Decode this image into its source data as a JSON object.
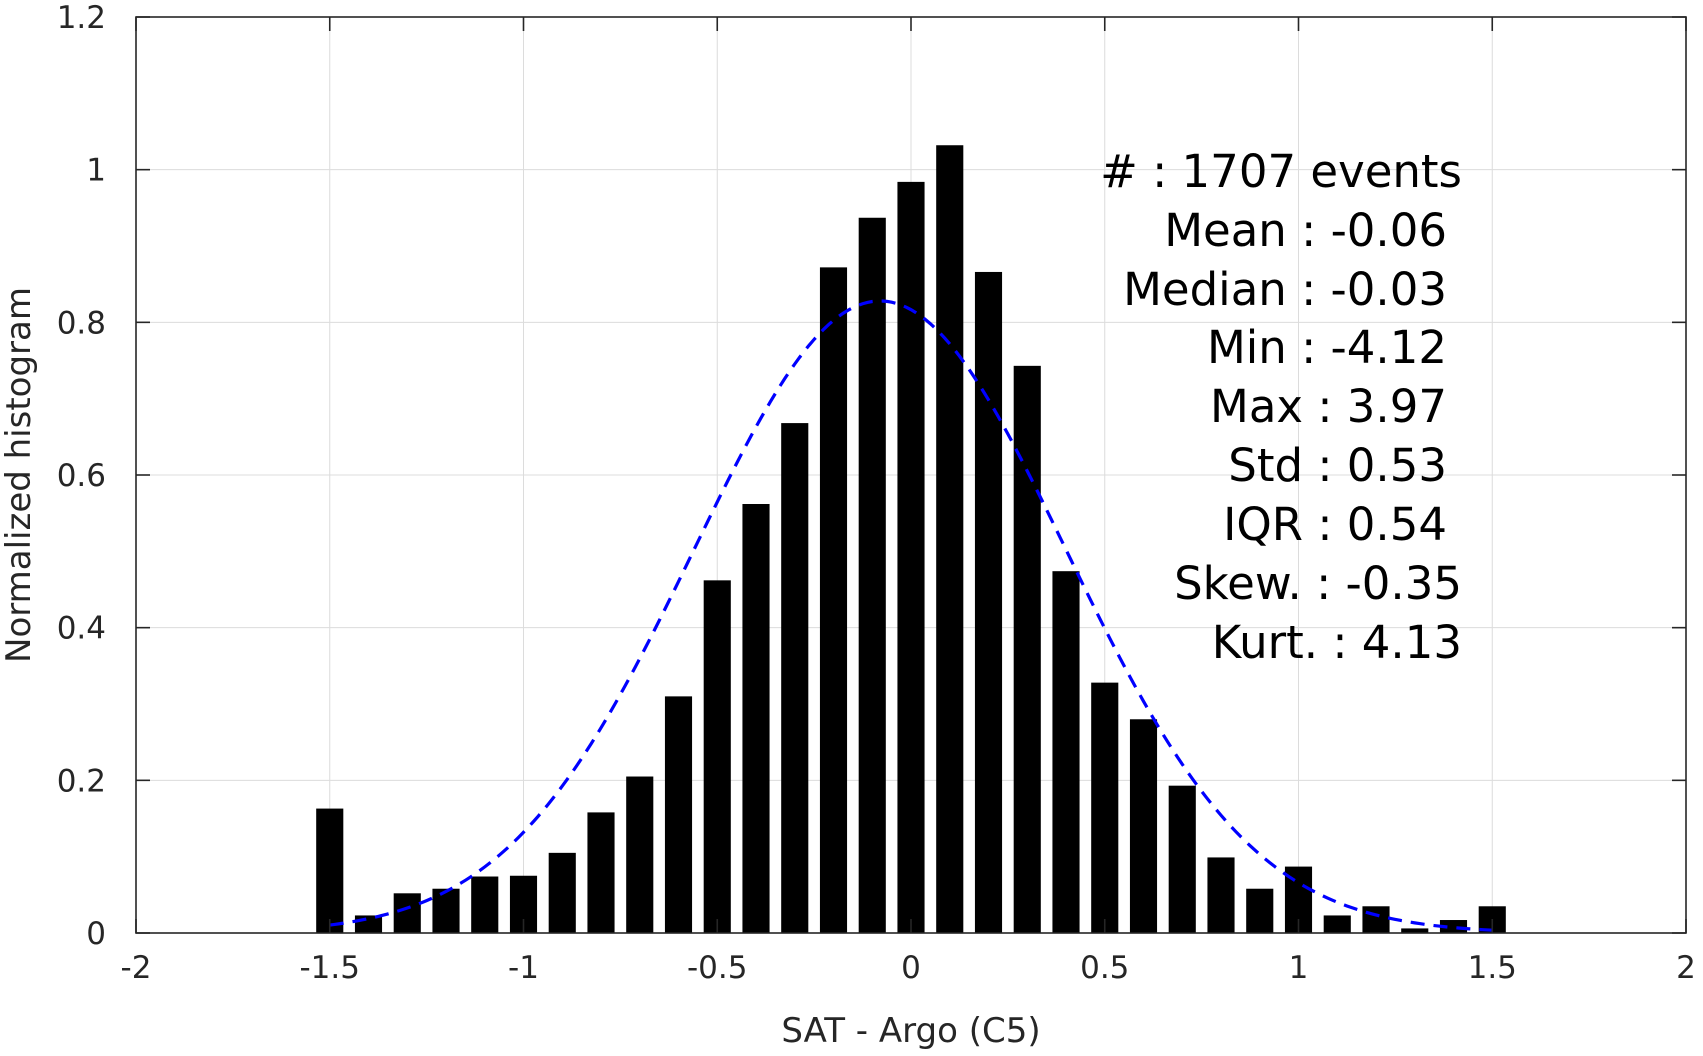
{
  "chart_data": {
    "type": "bar",
    "xlabel": "SAT - Argo (C5)",
    "ylabel": "Normalized histogram",
    "xlim": [
      -2,
      2
    ],
    "ylim": [
      0,
      1.2
    ],
    "grid": true,
    "x_ticks": [
      -2,
      -1.5,
      -1,
      -0.5,
      0,
      0.5,
      1,
      1.5,
      2
    ],
    "x_tick_labels": [
      "-2",
      "-1.5",
      "-1",
      "-0.5",
      "0",
      "0.5",
      "1",
      "1.5",
      "2"
    ],
    "y_ticks": [
      0,
      0.2,
      0.4,
      0.6,
      0.8,
      1,
      1.2
    ],
    "y_tick_labels": [
      "0",
      "0.2",
      "0.4",
      "0.6",
      "0.8",
      "1",
      "1.2"
    ],
    "bar_width": 0.07,
    "bar_color": "#000000",
    "series": [
      {
        "x": [
          -1.5,
          -1.4,
          -1.3,
          -1.2,
          -1.1,
          -1.0,
          -0.9,
          -0.8,
          -0.7,
          -0.6,
          -0.5,
          -0.4,
          -0.3,
          -0.2,
          -0.1,
          0.0,
          0.1,
          0.2,
          0.3,
          0.4,
          0.5,
          0.6,
          0.7,
          0.8,
          0.9,
          1.0,
          1.1,
          1.2,
          1.3,
          1.4,
          1.5
        ],
        "values": [
          0.163,
          0.023,
          0.052,
          0.058,
          0.074,
          0.075,
          0.105,
          0.158,
          0.205,
          0.31,
          0.462,
          0.562,
          0.668,
          0.872,
          0.937,
          0.984,
          1.032,
          0.866,
          0.743,
          0.474,
          0.328,
          0.28,
          0.193,
          0.099,
          0.058,
          0.087,
          0.023,
          0.035,
          0.006,
          0.017,
          0.035
        ]
      }
    ],
    "fit_curve": {
      "style": "dashed",
      "color": "#0000ff",
      "distribution": "normal",
      "mean": -0.08,
      "std": 0.48,
      "peak": 0.828,
      "x_range": [
        -1.5,
        1.5
      ]
    },
    "annotations": [
      "#  : 1707 events",
      "Mean : -0.06",
      "Median : -0.03",
      "Min : -4.12",
      "Max : 3.97",
      "Std : 0.53",
      "IQR : 0.54",
      "Skew. : -0.35",
      "Kurt. : 4.13"
    ]
  }
}
